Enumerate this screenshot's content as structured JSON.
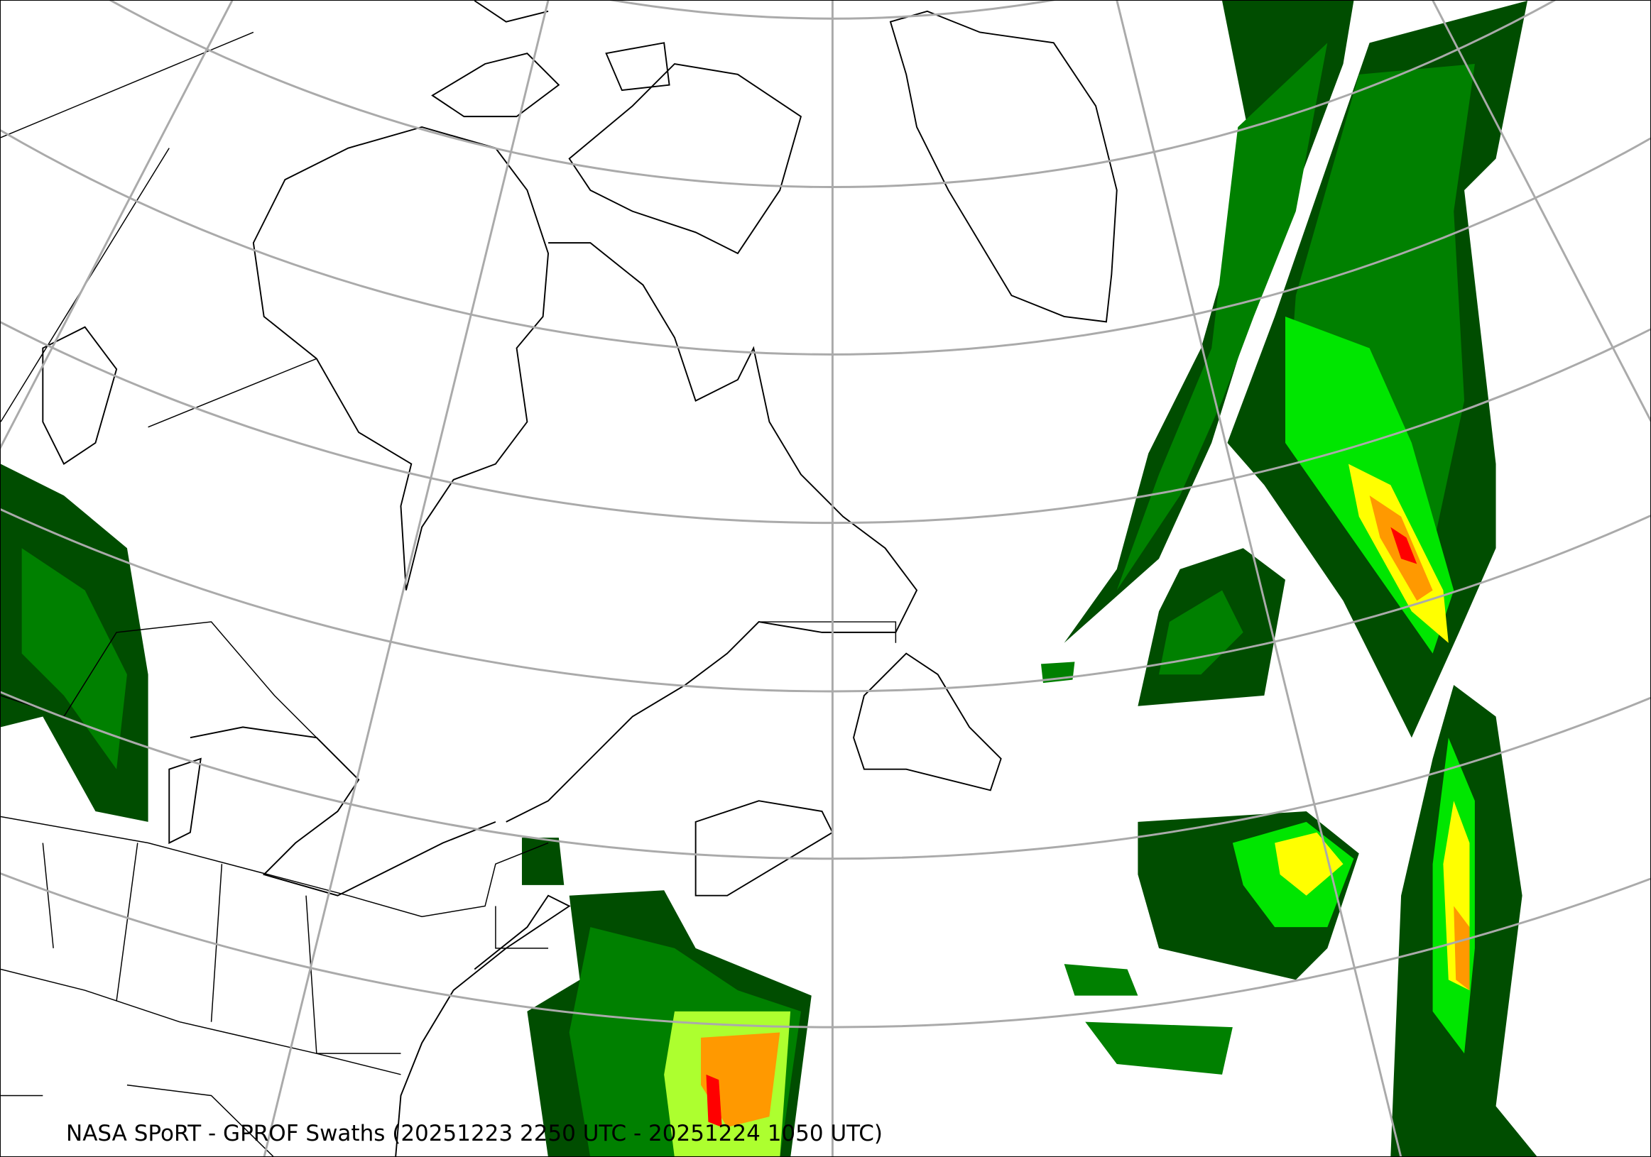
{
  "map": {
    "caption": "NASA SPoRT - GPROF Swaths (20251223 2250 UTC - 20251224 1050 UTC)",
    "projection": "conic",
    "graticule_color": "#aaaaaa",
    "coastline_color": "#000000",
    "precip_colors": [
      "#004d00",
      "#008000",
      "#00e600",
      "#adff2f",
      "#ffff00",
      "#ff9900",
      "#ff0000"
    ]
  }
}
